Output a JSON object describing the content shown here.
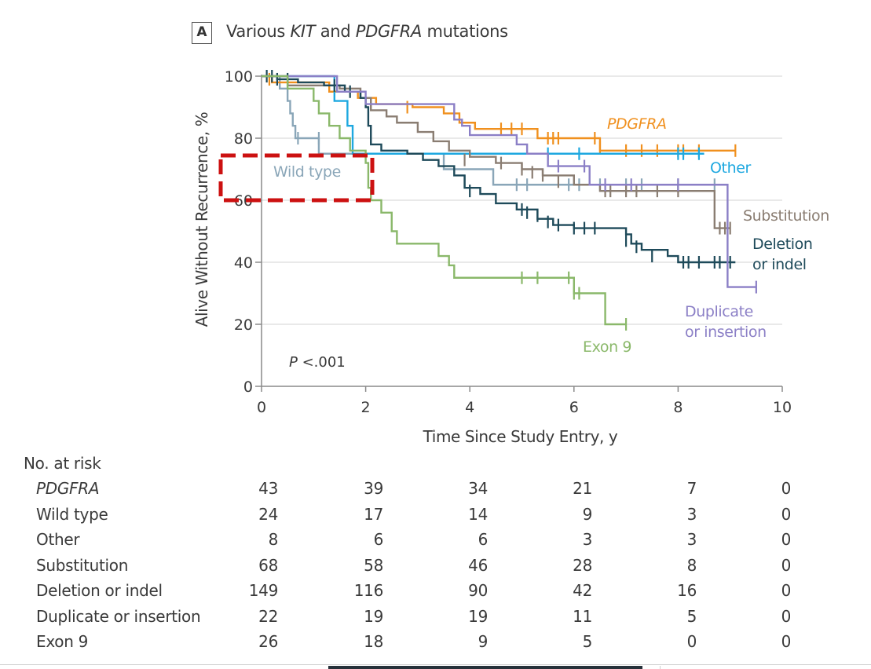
{
  "panel_label": "A",
  "title_parts": [
    "Various ",
    "KIT",
    " and ",
    "PDGFRA",
    " mutations"
  ],
  "chart_data": {
    "type": "line",
    "subtype": "kaplan-meier step",
    "title": "Various KIT and PDGFRA mutations",
    "xlabel": "Time Since Study Entry, y",
    "ylabel": "Alive Without Recurrence, %",
    "xlim": [
      0,
      10
    ],
    "ylim": [
      0,
      100
    ],
    "xticks": [
      0,
      2,
      4,
      6,
      8,
      10
    ],
    "yticks": [
      0,
      20,
      40,
      60,
      80,
      100
    ],
    "grid": "horizontal",
    "annotation": "P <.001",
    "series": [
      {
        "name": "Wild type",
        "label": "Wild type",
        "color": "#8aa6b8",
        "steps": [
          [
            0,
            100
          ],
          [
            0.35,
            96
          ],
          [
            0.5,
            92
          ],
          [
            0.55,
            88
          ],
          [
            0.6,
            84
          ],
          [
            0.65,
            80
          ],
          [
            1.1,
            75
          ],
          [
            3.5,
            70
          ],
          [
            4.45,
            65
          ],
          [
            8.7,
            65
          ]
        ],
        "censored": [
          [
            0.7,
            80
          ],
          [
            1.1,
            80
          ],
          [
            4.9,
            65
          ],
          [
            5.1,
            65
          ],
          [
            5.9,
            65
          ],
          [
            6.1,
            65
          ],
          [
            6.5,
            65
          ],
          [
            7.0,
            65
          ],
          [
            7.3,
            65
          ],
          [
            8.0,
            65
          ],
          [
            8.7,
            65
          ]
        ]
      },
      {
        "name": "PDGFRA",
        "label": "PDGFRA",
        "color": "#f0901e",
        "steps": [
          [
            0,
            100
          ],
          [
            0.2,
            98
          ],
          [
            1.3,
            95
          ],
          [
            1.85,
            93
          ],
          [
            2.2,
            91
          ],
          [
            2.9,
            90
          ],
          [
            3.5,
            88
          ],
          [
            3.8,
            85
          ],
          [
            4.1,
            83
          ],
          [
            5.3,
            80
          ],
          [
            6.5,
            76
          ],
          [
            9.1,
            76
          ]
        ],
        "censored": [
          [
            0.15,
            99
          ],
          [
            2.8,
            90
          ],
          [
            4.6,
            83
          ],
          [
            4.8,
            83
          ],
          [
            5.0,
            83
          ],
          [
            5.5,
            80
          ],
          [
            5.6,
            80
          ],
          [
            5.7,
            80
          ],
          [
            6.4,
            80
          ],
          [
            6.5,
            77
          ],
          [
            7.0,
            76
          ],
          [
            7.3,
            76
          ],
          [
            7.6,
            76
          ],
          [
            8.0,
            76
          ],
          [
            8.1,
            76
          ],
          [
            8.4,
            76
          ],
          [
            9.1,
            76
          ]
        ]
      },
      {
        "name": "Other",
        "label": "Other",
        "color": "#1ea8e0",
        "steps": [
          [
            0,
            100
          ],
          [
            1.4,
            92
          ],
          [
            1.65,
            84
          ],
          [
            1.75,
            75
          ],
          [
            8.5,
            75
          ]
        ],
        "censored": [
          [
            5.5,
            75
          ],
          [
            6.1,
            75
          ],
          [
            8.0,
            75
          ],
          [
            8.1,
            75
          ],
          [
            8.4,
            75
          ]
        ]
      },
      {
        "name": "Substitution",
        "label": "Substitution",
        "color": "#8a7d72",
        "steps": [
          [
            0,
            100
          ],
          [
            0.5,
            97
          ],
          [
            1.5,
            96
          ],
          [
            1.9,
            93
          ],
          [
            2.1,
            89
          ],
          [
            2.4,
            87
          ],
          [
            2.6,
            85
          ],
          [
            3.0,
            82
          ],
          [
            3.3,
            79
          ],
          [
            3.6,
            76
          ],
          [
            4.0,
            74
          ],
          [
            4.5,
            72
          ],
          [
            5.0,
            70
          ],
          [
            5.4,
            68
          ],
          [
            6.0,
            65
          ],
          [
            6.5,
            63
          ],
          [
            8.4,
            63
          ],
          [
            8.7,
            51
          ],
          [
            9.0,
            51
          ]
        ],
        "censored": [
          [
            3.9,
            73
          ],
          [
            4.6,
            72
          ],
          [
            5.0,
            70
          ],
          [
            5.2,
            69
          ],
          [
            5.4,
            68
          ],
          [
            5.7,
            66
          ],
          [
            6.6,
            63
          ],
          [
            6.7,
            63
          ],
          [
            7.0,
            63
          ],
          [
            7.2,
            63
          ],
          [
            7.6,
            63
          ],
          [
            8.0,
            63
          ],
          [
            8.8,
            51
          ],
          [
            8.9,
            51
          ],
          [
            9.0,
            51
          ]
        ]
      },
      {
        "name": "Deletion or indel",
        "label": "Deletion\nor indel",
        "color": "#1e4a5a",
        "steps": [
          [
            0,
            100
          ],
          [
            0.3,
            99
          ],
          [
            0.7,
            98
          ],
          [
            1.2,
            97
          ],
          [
            1.6,
            95
          ],
          [
            1.9,
            93
          ],
          [
            2.0,
            90
          ],
          [
            2.05,
            84
          ],
          [
            2.1,
            78
          ],
          [
            2.3,
            76
          ],
          [
            2.8,
            75
          ],
          [
            3.1,
            73
          ],
          [
            3.4,
            71
          ],
          [
            3.7,
            68
          ],
          [
            3.9,
            64
          ],
          [
            4.2,
            62
          ],
          [
            4.5,
            59
          ],
          [
            4.9,
            57
          ],
          [
            5.3,
            54
          ],
          [
            5.6,
            52
          ],
          [
            6.0,
            51
          ],
          [
            7.0,
            49
          ],
          [
            7.1,
            46
          ],
          [
            7.3,
            44
          ],
          [
            7.8,
            42
          ],
          [
            8.0,
            40
          ],
          [
            9.1,
            40
          ]
        ],
        "censored": [
          [
            0.1,
            100
          ],
          [
            0.2,
            100
          ],
          [
            0.3,
            99
          ],
          [
            0.5,
            99
          ],
          [
            1.4,
            97
          ],
          [
            1.7,
            95
          ],
          [
            3.9,
            66
          ],
          [
            4.0,
            63
          ],
          [
            5.0,
            57
          ],
          [
            5.1,
            56
          ],
          [
            5.3,
            55
          ],
          [
            5.5,
            53
          ],
          [
            5.7,
            52
          ],
          [
            6.0,
            51
          ],
          [
            6.2,
            51
          ],
          [
            6.4,
            51
          ],
          [
            7.0,
            47
          ],
          [
            7.2,
            45
          ],
          [
            7.5,
            42
          ],
          [
            8.1,
            40
          ],
          [
            8.2,
            40
          ],
          [
            8.4,
            40
          ],
          [
            8.7,
            40
          ],
          [
            8.8,
            40
          ],
          [
            9.0,
            40
          ]
        ]
      },
      {
        "name": "Duplicate or insertion",
        "label": "Duplicate\nor insertion",
        "color": "#8b7fc6",
        "steps": [
          [
            0,
            100
          ],
          [
            1.45,
            95
          ],
          [
            2.0,
            91
          ],
          [
            3.7,
            86
          ],
          [
            3.85,
            84
          ],
          [
            4.0,
            81
          ],
          [
            4.9,
            78
          ],
          [
            5.1,
            75
          ],
          [
            5.5,
            71
          ],
          [
            6.3,
            65
          ],
          [
            8.9,
            65
          ],
          [
            8.95,
            32
          ],
          [
            9.5,
            32
          ]
        ],
        "censored": [
          [
            5.7,
            71
          ],
          [
            6.2,
            71
          ],
          [
            6.6,
            65
          ],
          [
            7.1,
            65
          ],
          [
            8.0,
            65
          ],
          [
            9.5,
            32
          ]
        ]
      },
      {
        "name": "Exon 9",
        "label": "Exon 9",
        "color": "#8ab86a",
        "steps": [
          [
            0,
            100
          ],
          [
            0.5,
            96
          ],
          [
            1.0,
            92
          ],
          [
            1.1,
            88
          ],
          [
            1.3,
            84
          ],
          [
            1.5,
            80
          ],
          [
            1.7,
            76
          ],
          [
            2.0,
            72
          ],
          [
            2.05,
            64
          ],
          [
            2.1,
            60
          ],
          [
            2.3,
            56
          ],
          [
            2.5,
            50
          ],
          [
            2.6,
            46
          ],
          [
            3.4,
            42
          ],
          [
            3.6,
            39
          ],
          [
            3.7,
            35
          ],
          [
            5.9,
            35
          ],
          [
            6.0,
            30
          ],
          [
            6.5,
            30
          ],
          [
            6.6,
            20
          ],
          [
            7.0,
            20
          ]
        ],
        "censored": [
          [
            5.0,
            35
          ],
          [
            5.3,
            35
          ],
          [
            5.9,
            35
          ],
          [
            6.0,
            30
          ],
          [
            6.1,
            30
          ],
          [
            7.0,
            20
          ]
        ]
      }
    ]
  },
  "risk_table": {
    "heading": "No. at risk",
    "timepoints": [
      0,
      2,
      4,
      6,
      8,
      10
    ],
    "rows": [
      {
        "label": "PDGFRA",
        "italic": true,
        "values": [
          "43",
          "39",
          "34",
          "21",
          "7",
          "0"
        ]
      },
      {
        "label": "Wild type",
        "italic": false,
        "values": [
          "24",
          "17",
          "14",
          "9",
          "3",
          "0"
        ]
      },
      {
        "label": "Other",
        "italic": false,
        "values": [
          "8",
          "6",
          "6",
          "3",
          "3",
          "0"
        ]
      },
      {
        "label": "Substitution",
        "italic": false,
        "values": [
          "68",
          "58",
          "46",
          "28",
          "8",
          "0"
        ]
      },
      {
        "label": "Deletion or indel",
        "italic": false,
        "values": [
          "149",
          "116",
          "90",
          "42",
          "16",
          "0"
        ]
      },
      {
        "label": "Duplicate or insertion",
        "italic": false,
        "values": [
          "22",
          "19",
          "19",
          "11",
          "5",
          "0"
        ]
      },
      {
        "label": "Exon 9",
        "italic": false,
        "values": [
          "26",
          "18",
          "9",
          "5",
          "0",
          "0"
        ]
      }
    ]
  },
  "highlight": {
    "description": "dashed red rectangle around Wild type label",
    "color": "#cc1111"
  }
}
